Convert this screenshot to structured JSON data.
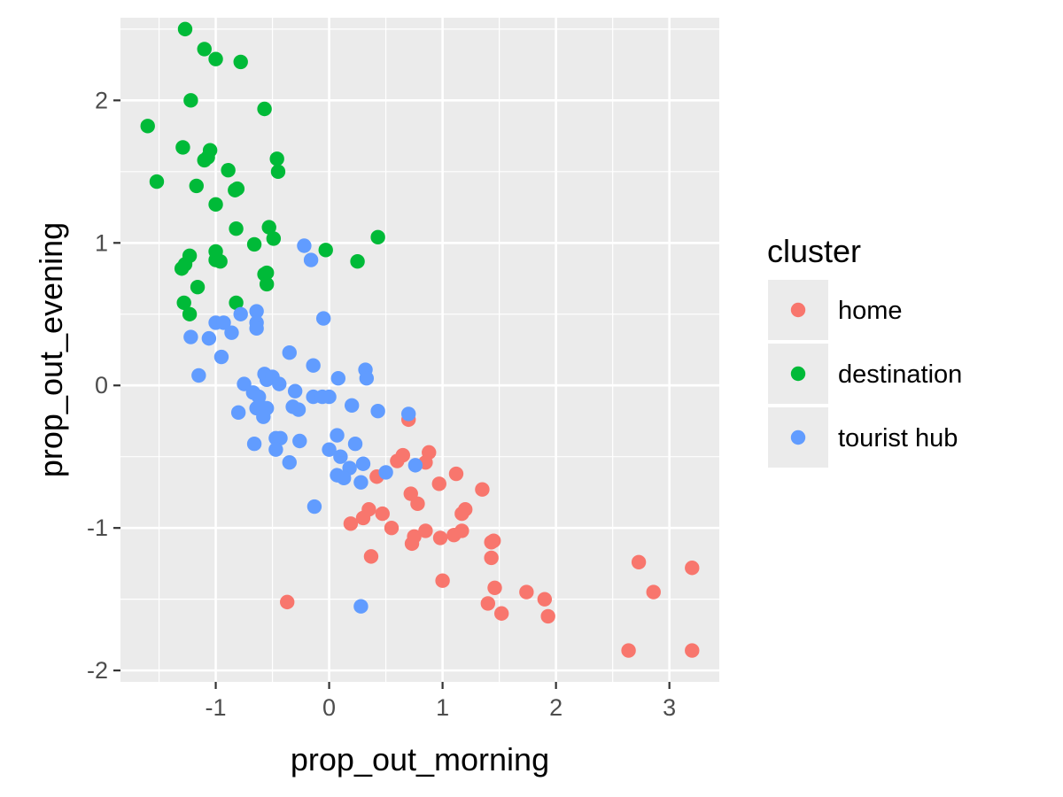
{
  "chart_data": {
    "type": "scatter",
    "xlabel": "prop_out_morning",
    "ylabel": "prop_out_evening",
    "xlim": [
      -1.84,
      3.44
    ],
    "ylim": [
      -2.08,
      2.58
    ],
    "xticks": [
      -1,
      0,
      1,
      2,
      3
    ],
    "yticks": [
      -2,
      -1,
      0,
      1,
      2
    ],
    "grid": true,
    "legend": {
      "title": "cluster",
      "position": "right"
    },
    "series": [
      {
        "name": "home",
        "color": "#F8766D",
        "points": [
          [
            0.7,
            -0.24
          ],
          [
            0.42,
            -0.64
          ],
          [
            0.65,
            -0.49
          ],
          [
            0.6,
            -0.53
          ],
          [
            0.88,
            -0.47
          ],
          [
            0.85,
            -0.54
          ],
          [
            1.12,
            -0.62
          ],
          [
            1.35,
            -0.73
          ],
          [
            0.97,
            -0.69
          ],
          [
            0.72,
            -0.76
          ],
          [
            0.78,
            -0.83
          ],
          [
            1.2,
            -0.87
          ],
          [
            1.17,
            -0.9
          ],
          [
            0.35,
            -0.87
          ],
          [
            0.47,
            -0.9
          ],
          [
            0.3,
            -0.93
          ],
          [
            0.19,
            -0.97
          ],
          [
            0.55,
            -1.0
          ],
          [
            0.85,
            -1.02
          ],
          [
            0.75,
            -1.06
          ],
          [
            0.73,
            -1.11
          ],
          [
            0.98,
            -1.07
          ],
          [
            1.1,
            -1.05
          ],
          [
            1.17,
            -1.02
          ],
          [
            1.45,
            -1.09
          ],
          [
            1.43,
            -1.1
          ],
          [
            1.43,
            -1.21
          ],
          [
            0.37,
            -1.2
          ],
          [
            1.0,
            -1.37
          ],
          [
            1.46,
            -1.42
          ],
          [
            1.74,
            -1.45
          ],
          [
            1.9,
            -1.5
          ],
          [
            1.93,
            -1.62
          ],
          [
            1.52,
            -1.6
          ],
          [
            1.4,
            -1.53
          ],
          [
            -0.37,
            -1.52
          ],
          [
            2.73,
            -1.24
          ],
          [
            2.86,
            -1.45
          ],
          [
            3.2,
            -1.28
          ],
          [
            2.64,
            -1.86
          ],
          [
            3.2,
            -1.86
          ]
        ]
      },
      {
        "name": "destination",
        "color": "#00BA38",
        "points": [
          [
            -1.27,
            2.5
          ],
          [
            -1.1,
            2.36
          ],
          [
            -1.0,
            2.29
          ],
          [
            -0.78,
            2.27
          ],
          [
            -1.22,
            2.0
          ],
          [
            -0.57,
            1.94
          ],
          [
            -1.6,
            1.82
          ],
          [
            -1.29,
            1.67
          ],
          [
            -1.05,
            1.65
          ],
          [
            -1.1,
            1.58
          ],
          [
            -1.07,
            1.6
          ],
          [
            -0.46,
            1.59
          ],
          [
            -0.89,
            1.51
          ],
          [
            -0.45,
            1.5
          ],
          [
            -1.52,
            1.43
          ],
          [
            -1.17,
            1.4
          ],
          [
            -0.81,
            1.38
          ],
          [
            -0.83,
            1.37
          ],
          [
            -1.0,
            1.27
          ],
          [
            -0.53,
            1.11
          ],
          [
            -0.82,
            1.1
          ],
          [
            -0.49,
            1.03
          ],
          [
            0.43,
            1.04
          ],
          [
            -0.66,
            0.99
          ],
          [
            -0.03,
            0.95
          ],
          [
            -1.0,
            0.94
          ],
          [
            -1.0,
            0.88
          ],
          [
            -0.96,
            0.87
          ],
          [
            0.25,
            0.87
          ],
          [
            -1.23,
            0.91
          ],
          [
            -1.27,
            0.85
          ],
          [
            -1.3,
            0.82
          ],
          [
            -0.57,
            0.78
          ],
          [
            -0.55,
            0.79
          ],
          [
            -0.55,
            0.71
          ],
          [
            -1.16,
            0.69
          ],
          [
            -1.28,
            0.58
          ],
          [
            -0.82,
            0.58
          ],
          [
            -1.23,
            0.5
          ]
        ]
      },
      {
        "name": "tourist hub",
        "color": "#619CFF",
        "points": [
          [
            -0.22,
            0.98
          ],
          [
            -0.16,
            0.88
          ],
          [
            -0.64,
            0.52
          ],
          [
            -0.64,
            0.44
          ],
          [
            -1.0,
            0.44
          ],
          [
            -0.93,
            0.44
          ],
          [
            -0.78,
            0.5
          ],
          [
            -0.86,
            0.37
          ],
          [
            -1.22,
            0.34
          ],
          [
            -1.06,
            0.33
          ],
          [
            -0.64,
            0.4
          ],
          [
            -0.05,
            0.47
          ],
          [
            -0.95,
            0.2
          ],
          [
            -0.35,
            0.23
          ],
          [
            -1.15,
            0.07
          ],
          [
            -0.57,
            0.08
          ],
          [
            -0.55,
            0.04
          ],
          [
            -0.5,
            0.06
          ],
          [
            -0.44,
            0.01
          ],
          [
            -0.75,
            0.01
          ],
          [
            -0.67,
            -0.05
          ],
          [
            -0.62,
            -0.08
          ],
          [
            -0.3,
            -0.04
          ],
          [
            0.08,
            0.05
          ],
          [
            0.32,
            0.11
          ],
          [
            0.33,
            0.05
          ],
          [
            -0.14,
            0.14
          ],
          [
            -0.14,
            -0.08
          ],
          [
            -0.06,
            -0.08
          ],
          [
            0.0,
            -0.08
          ],
          [
            0.2,
            -0.14
          ],
          [
            0.43,
            -0.18
          ],
          [
            0.7,
            -0.2
          ],
          [
            -0.64,
            -0.16
          ],
          [
            -0.6,
            -0.15
          ],
          [
            -0.55,
            -0.16
          ],
          [
            -0.32,
            -0.15
          ],
          [
            -0.27,
            -0.17
          ],
          [
            -0.8,
            -0.19
          ],
          [
            -0.58,
            -0.22
          ],
          [
            -0.47,
            -0.37
          ],
          [
            -0.43,
            -0.37
          ],
          [
            -0.26,
            -0.39
          ],
          [
            -0.66,
            -0.41
          ],
          [
            -0.47,
            -0.45
          ],
          [
            -0.35,
            -0.54
          ],
          [
            0.07,
            -0.35
          ],
          [
            0.23,
            -0.41
          ],
          [
            0.0,
            -0.45
          ],
          [
            0.1,
            -0.5
          ],
          [
            0.3,
            -0.55
          ],
          [
            0.18,
            -0.58
          ],
          [
            0.76,
            -0.56
          ],
          [
            0.5,
            -0.61
          ],
          [
            0.07,
            -0.63
          ],
          [
            0.13,
            -0.65
          ],
          [
            0.28,
            -0.68
          ],
          [
            -0.13,
            -0.85
          ],
          [
            0.28,
            -1.55
          ]
        ]
      }
    ]
  }
}
